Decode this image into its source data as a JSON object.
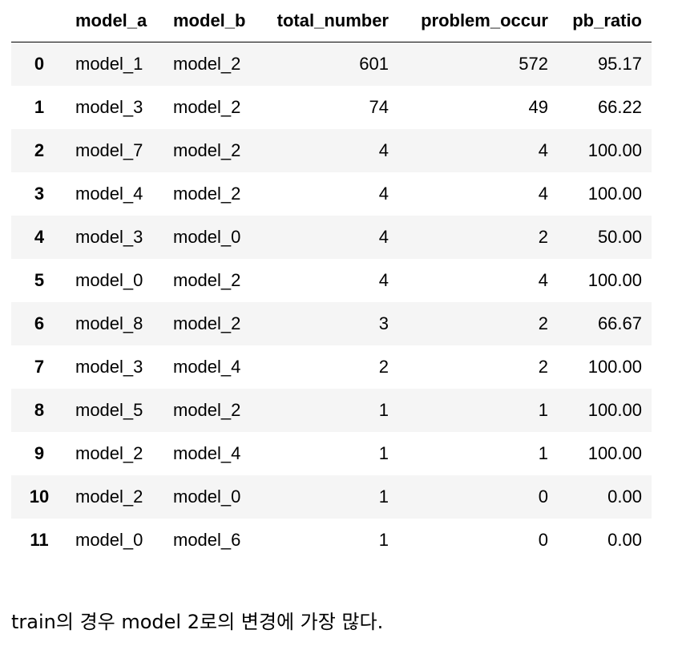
{
  "table": {
    "columns": [
      "",
      "model_a",
      "model_b",
      "total_number",
      "problem_occur",
      "pb_ratio"
    ],
    "rows": [
      {
        "index": "0",
        "model_a": "model_1",
        "model_b": "model_2",
        "total_number": "601",
        "problem_occur": "572",
        "pb_ratio": "95.17"
      },
      {
        "index": "1",
        "model_a": "model_3",
        "model_b": "model_2",
        "total_number": "74",
        "problem_occur": "49",
        "pb_ratio": "66.22"
      },
      {
        "index": "2",
        "model_a": "model_7",
        "model_b": "model_2",
        "total_number": "4",
        "problem_occur": "4",
        "pb_ratio": "100.00"
      },
      {
        "index": "3",
        "model_a": "model_4",
        "model_b": "model_2",
        "total_number": "4",
        "problem_occur": "4",
        "pb_ratio": "100.00"
      },
      {
        "index": "4",
        "model_a": "model_3",
        "model_b": "model_0",
        "total_number": "4",
        "problem_occur": "2",
        "pb_ratio": "50.00"
      },
      {
        "index": "5",
        "model_a": "model_0",
        "model_b": "model_2",
        "total_number": "4",
        "problem_occur": "4",
        "pb_ratio": "100.00"
      },
      {
        "index": "6",
        "model_a": "model_8",
        "model_b": "model_2",
        "total_number": "3",
        "problem_occur": "2",
        "pb_ratio": "66.67"
      },
      {
        "index": "7",
        "model_a": "model_3",
        "model_b": "model_4",
        "total_number": "2",
        "problem_occur": "2",
        "pb_ratio": "100.00"
      },
      {
        "index": "8",
        "model_a": "model_5",
        "model_b": "model_2",
        "total_number": "1",
        "problem_occur": "1",
        "pb_ratio": "100.00"
      },
      {
        "index": "9",
        "model_a": "model_2",
        "model_b": "model_4",
        "total_number": "1",
        "problem_occur": "1",
        "pb_ratio": "100.00"
      },
      {
        "index": "10",
        "model_a": "model_2",
        "model_b": "model_0",
        "total_number": "1",
        "problem_occur": "0",
        "pb_ratio": "0.00"
      },
      {
        "index": "11",
        "model_a": "model_0",
        "model_b": "model_6",
        "total_number": "1",
        "problem_occur": "0",
        "pb_ratio": "0.00"
      }
    ]
  },
  "note": "train의 경우 model 2로의 변경에 가장 많다.",
  "colors": {
    "stripe": "#f5f5f5",
    "text": "#000000",
    "background": "#ffffff"
  }
}
